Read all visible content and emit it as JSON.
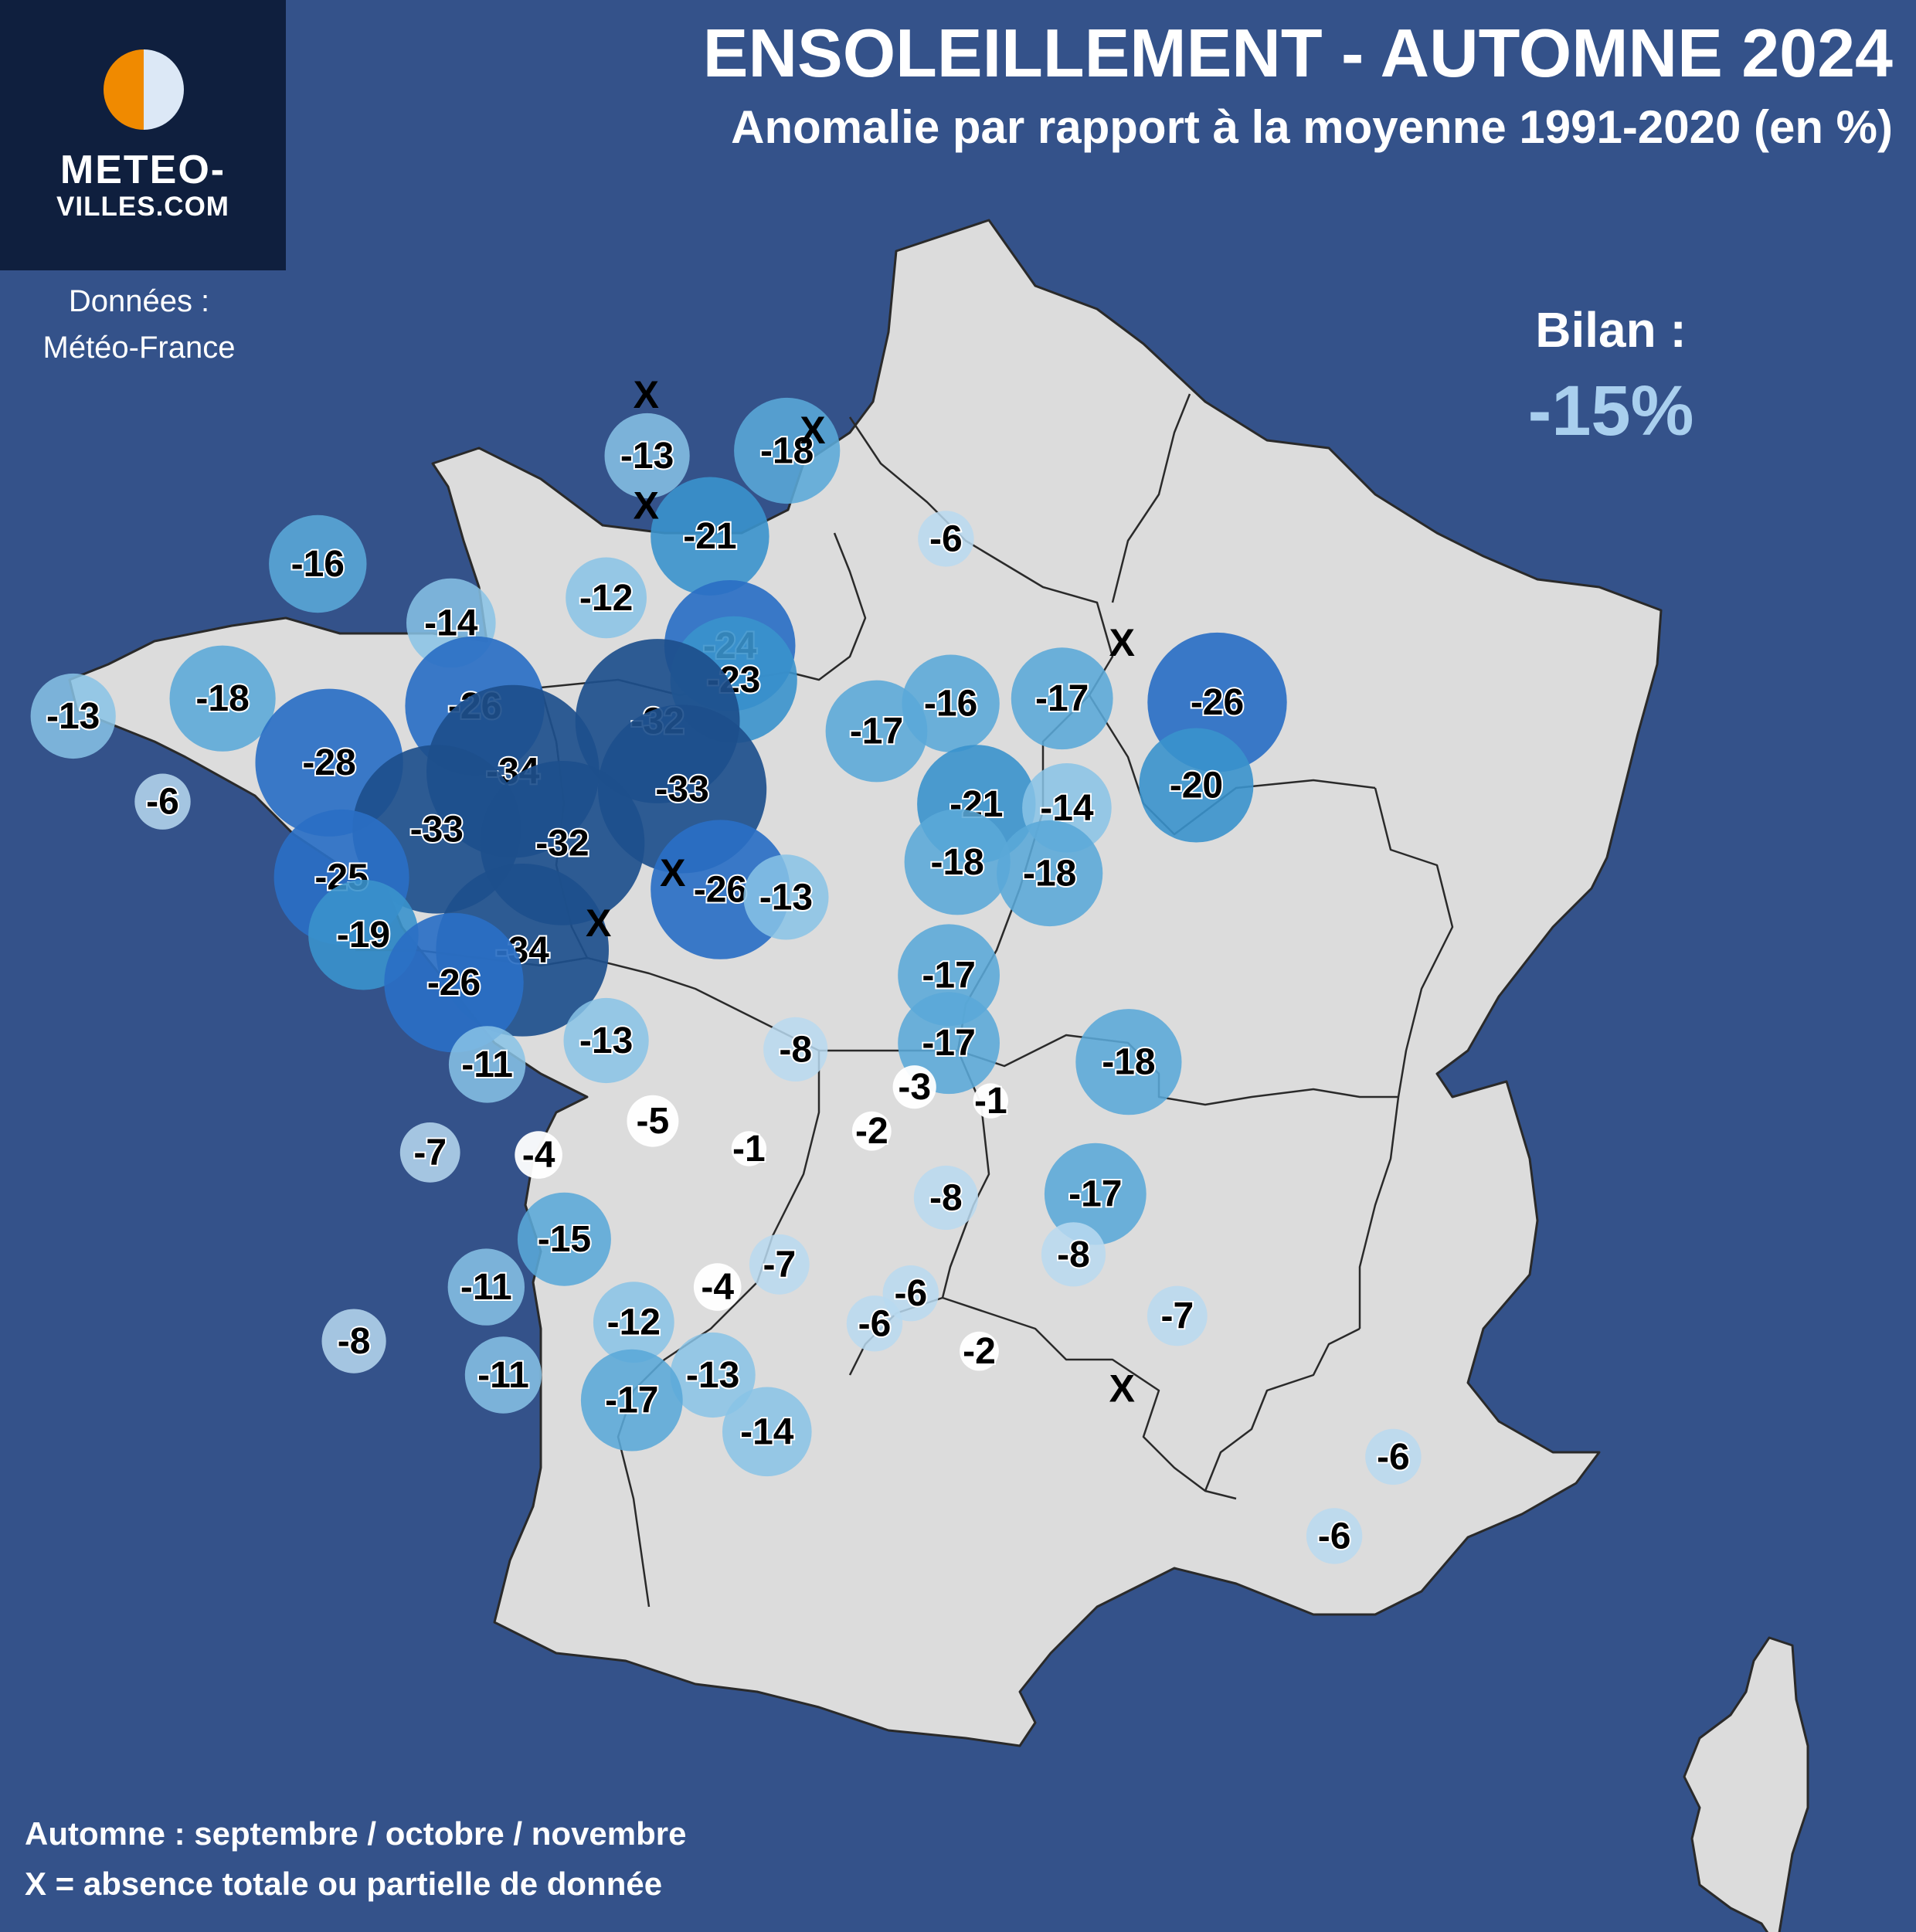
{
  "header": {
    "title": "ENSOLEILLEMENT - AUTOMNE 2024",
    "subtitle": "Anomalie par rapport à la moyenne 1991-2020 (en %)"
  },
  "logo": {
    "name": "METEO-",
    "domain": "VILLES.COM"
  },
  "source": {
    "line1": "Données :",
    "line2": "Météo-France"
  },
  "summary": {
    "label": "Bilan :",
    "value": "-15%"
  },
  "notes": {
    "season": "Automne : septembre / octobre / novembre",
    "missing": "X = absence totale ou partielle de donnée"
  },
  "colors": {
    "background": "#34528a",
    "land": "#dcdcdc",
    "border": "#2a2a2a",
    "logo_bg": "#0f1f3e",
    "logo_orange": "#f08a00",
    "bilan": "#a9cfee"
  },
  "stations": [
    {
      "label": "-13",
      "lon": 1.61,
      "lat": 50.51
    },
    {
      "label": "-18",
      "lon": 3.08,
      "lat": 50.55
    },
    {
      "label": "-6",
      "lon": 4.75,
      "lat": 49.85
    },
    {
      "label": "-16",
      "lon": -1.85,
      "lat": 49.65
    },
    {
      "label": "-12",
      "lon": 1.18,
      "lat": 49.38
    },
    {
      "label": "-21",
      "lon": 2.27,
      "lat": 49.87
    },
    {
      "label": "-14",
      "lon": -0.45,
      "lat": 49.18
    },
    {
      "label": "-24",
      "lon": 2.48,
      "lat": 49.0
    },
    {
      "label": "-23",
      "lon": 2.52,
      "lat": 48.73
    },
    {
      "label": "-32",
      "lon": 1.72,
      "lat": 48.4
    },
    {
      "label": "-13",
      "lon": -4.42,
      "lat": 48.44
    },
    {
      "label": "-18",
      "lon": -2.85,
      "lat": 48.58
    },
    {
      "label": "-26",
      "lon": -0.2,
      "lat": 48.52
    },
    {
      "label": "-28",
      "lon": -1.73,
      "lat": 48.07
    },
    {
      "label": "-34",
      "lon": 0.2,
      "lat": 48.0
    },
    {
      "label": "-33",
      "lon": 1.98,
      "lat": 47.86
    },
    {
      "label": "-6",
      "lon": -3.48,
      "lat": 47.76
    },
    {
      "label": "-33",
      "lon": -0.6,
      "lat": 47.54
    },
    {
      "label": "-32",
      "lon": 0.72,
      "lat": 47.43
    },
    {
      "label": "-25",
      "lon": -1.6,
      "lat": 47.16
    },
    {
      "label": "-26",
      "lon": 2.38,
      "lat": 47.06
    },
    {
      "label": "-13",
      "lon": 3.07,
      "lat": 47.0
    },
    {
      "label": "-19",
      "lon": -1.37,
      "lat": 46.7
    },
    {
      "label": "-34",
      "lon": 0.3,
      "lat": 46.58
    },
    {
      "label": "-26",
      "lon": -0.42,
      "lat": 46.32
    },
    {
      "label": "-11",
      "lon": -0.07,
      "lat": 45.67
    },
    {
      "label": "-13",
      "lon": 1.18,
      "lat": 45.86
    },
    {
      "label": "-8",
      "lon": 3.17,
      "lat": 45.79
    },
    {
      "label": "-16",
      "lon": 4.8,
      "lat": 48.54
    },
    {
      "label": "-17",
      "lon": 5.97,
      "lat": 48.58
    },
    {
      "label": "-26",
      "lon": 7.6,
      "lat": 48.55
    },
    {
      "label": "-17",
      "lon": 4.02,
      "lat": 48.32
    },
    {
      "label": "-20",
      "lon": 7.38,
      "lat": 47.89
    },
    {
      "label": "-21",
      "lon": 5.07,
      "lat": 47.74
    },
    {
      "label": "-14",
      "lon": 6.02,
      "lat": 47.71
    },
    {
      "label": "-18",
      "lon": 4.87,
      "lat": 47.28
    },
    {
      "label": "-18",
      "lon": 5.84,
      "lat": 47.19
    },
    {
      "label": "-17",
      "lon": 4.78,
      "lat": 46.38
    },
    {
      "label": "-17",
      "lon": 4.78,
      "lat": 45.84
    },
    {
      "label": "-18",
      "lon": 6.67,
      "lat": 45.69
    },
    {
      "label": "-3",
      "lon": 4.42,
      "lat": 45.49
    },
    {
      "label": "-1",
      "lon": 5.22,
      "lat": 45.38
    },
    {
      "label": "-2",
      "lon": 3.97,
      "lat": 45.14
    },
    {
      "label": "-1",
      "lon": 2.68,
      "lat": 45.0
    },
    {
      "label": "-5",
      "lon": 1.67,
      "lat": 45.22
    },
    {
      "label": "-7",
      "lon": -0.67,
      "lat": 44.97
    },
    {
      "label": "-4",
      "lon": 0.47,
      "lat": 44.95
    },
    {
      "label": "-8",
      "lon": 4.75,
      "lat": 44.61
    },
    {
      "label": "-17",
      "lon": 6.32,
      "lat": 44.64
    },
    {
      "label": "-15",
      "lon": 0.74,
      "lat": 44.28
    },
    {
      "label": "-8",
      "lon": 6.09,
      "lat": 44.16
    },
    {
      "label": "-7",
      "lon": 3.0,
      "lat": 44.08
    },
    {
      "label": "-11",
      "lon": -0.08,
      "lat": 43.9
    },
    {
      "label": "-4",
      "lon": 2.35,
      "lat": 43.9
    },
    {
      "label": "-6",
      "lon": 4.38,
      "lat": 43.85
    },
    {
      "label": "-6",
      "lon": 4.0,
      "lat": 43.61
    },
    {
      "label": "-12",
      "lon": 1.47,
      "lat": 43.62
    },
    {
      "label": "-7",
      "lon": 7.18,
      "lat": 43.67
    },
    {
      "label": "-8",
      "lon": -1.47,
      "lat": 43.47
    },
    {
      "label": "-2",
      "lon": 5.1,
      "lat": 43.39
    },
    {
      "label": "-11",
      "lon": 0.1,
      "lat": 43.2
    },
    {
      "label": "-13",
      "lon": 2.3,
      "lat": 43.2
    },
    {
      "label": "-17",
      "lon": 1.45,
      "lat": 43.0
    },
    {
      "label": "-14",
      "lon": 2.87,
      "lat": 42.75
    },
    {
      "label": "-6",
      "lon": 9.45,
      "lat": 42.55
    },
    {
      "label": "-6",
      "lon": 8.83,
      "lat": 41.92
    }
  ],
  "missing_markers": [
    {
      "label": "X",
      "lon": 1.6,
      "lat": 51.0
    },
    {
      "label": "X",
      "lon": 3.35,
      "lat": 50.72
    },
    {
      "label": "X",
      "lon": 1.6,
      "lat": 50.12
    },
    {
      "label": "X",
      "lon": 6.6,
      "lat": 49.03
    },
    {
      "label": "X",
      "lon": 1.88,
      "lat": 47.2
    },
    {
      "label": "X",
      "lon": 1.1,
      "lat": 46.8
    },
    {
      "label": "X",
      "lon": 6.6,
      "lat": 43.1
    }
  ]
}
